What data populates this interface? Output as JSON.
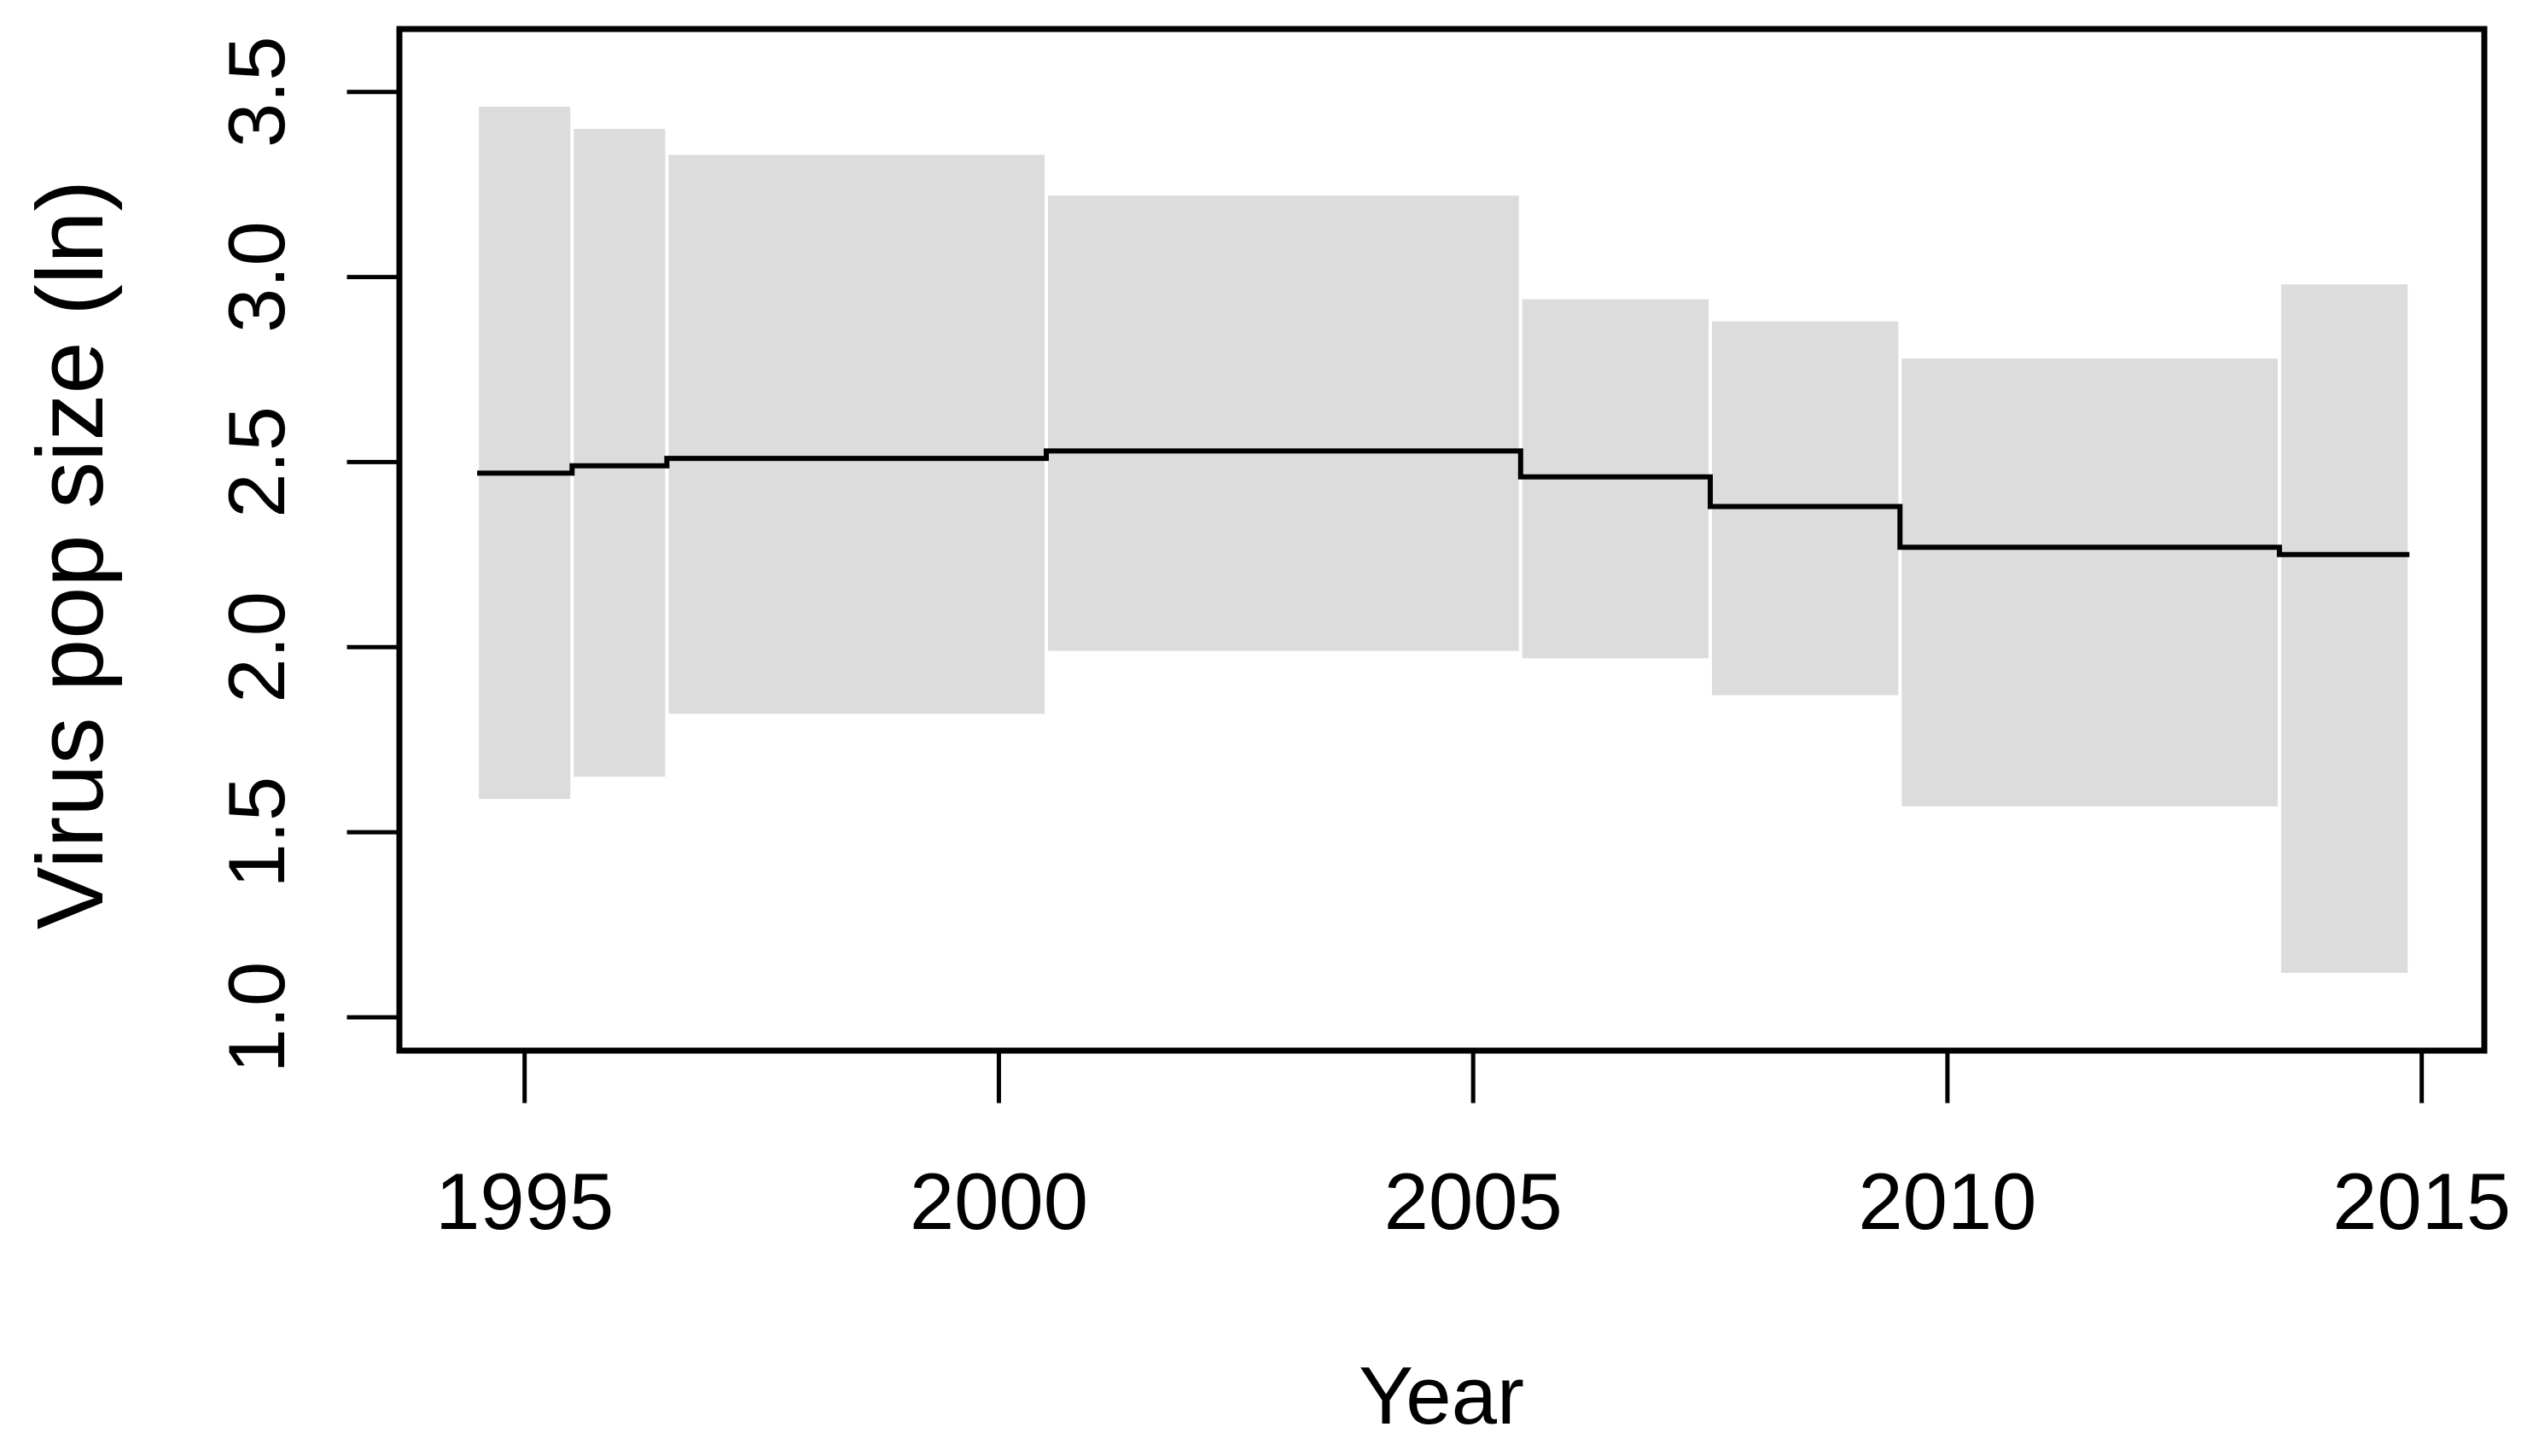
{
  "figure": {
    "background": "#ffffff"
  },
  "chart_data": {
    "type": "area",
    "subtype": "bayesian-skyline-step-plot",
    "title": "",
    "xlabel": "Year",
    "ylabel": "Virus pop size (ln)",
    "xlim": [
      1993.68,
      2015.66
    ],
    "ylim": [
      0.91,
      3.67
    ],
    "x_ticks": [
      1995,
      2000,
      2005,
      2010,
      2015
    ],
    "x_tick_labels": [
      "1995",
      "2000",
      "2005",
      "2010",
      "2015"
    ],
    "y_ticks": [
      1.0,
      1.5,
      2.0,
      2.5,
      3.0,
      3.5
    ],
    "y_tick_labels": [
      "1.0",
      "1.5",
      "2.0",
      "2.5",
      "3.0",
      "3.5"
    ],
    "grid": false,
    "legend": false,
    "colors": {
      "band": "#dcdcdc",
      "line": "#000000",
      "axis": "#000000",
      "background": "#ffffff"
    },
    "series": [
      {
        "name": "median virus pop size (ln)",
        "style": "black step line"
      },
      {
        "name": "credible interval",
        "style": "gray step band"
      }
    ],
    "segments": [
      {
        "start": 1994.5,
        "end": 1995.5,
        "median": 2.47,
        "lower": 1.59,
        "upper": 3.46
      },
      {
        "start": 1995.5,
        "end": 1996.5,
        "median": 2.49,
        "lower": 1.65,
        "upper": 3.4
      },
      {
        "start": 1996.5,
        "end": 2000.5,
        "median": 2.51,
        "lower": 1.82,
        "upper": 3.33
      },
      {
        "start": 2000.5,
        "end": 2005.5,
        "median": 2.53,
        "lower": 1.99,
        "upper": 3.22
      },
      {
        "start": 2005.5,
        "end": 2007.5,
        "median": 2.46,
        "lower": 1.97,
        "upper": 2.94
      },
      {
        "start": 2007.5,
        "end": 2009.5,
        "median": 2.38,
        "lower": 1.87,
        "upper": 2.88
      },
      {
        "start": 2009.5,
        "end": 2013.5,
        "median": 2.27,
        "lower": 1.57,
        "upper": 2.78
      },
      {
        "start": 2013.5,
        "end": 2014.87,
        "median": 2.25,
        "lower": 1.12,
        "upper": 2.98
      }
    ]
  }
}
